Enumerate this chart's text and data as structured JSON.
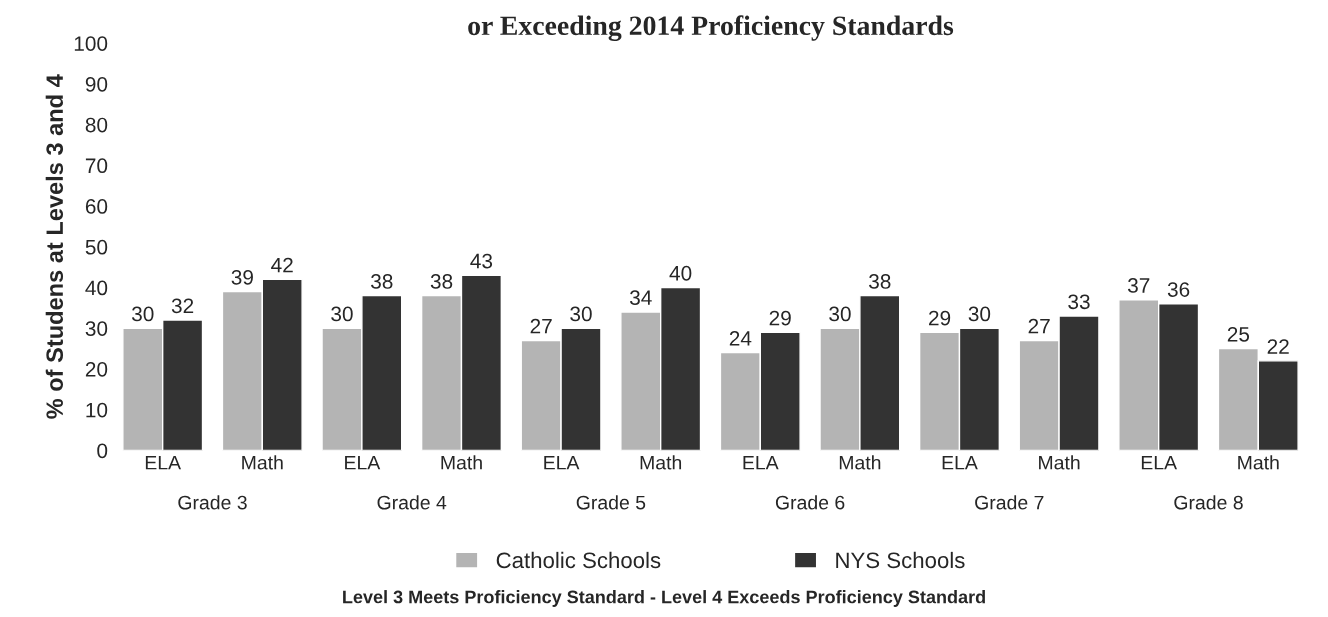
{
  "chart_data": {
    "type": "bar",
    "title": "or Exceeding 2014 Proficiency Standards",
    "ylabel": "% of Studens at Levels 3 and 4",
    "categories": [
      "ELA",
      "Math",
      "ELA",
      "Math",
      "ELA",
      "Math",
      "ELA",
      "Math",
      "ELA",
      "Math",
      "ELA",
      "Math"
    ],
    "series": [
      {
        "name": "Catholic Schools",
        "color": "#b4b4b4",
        "values": [
          30,
          39,
          30,
          38,
          27,
          34,
          24,
          30,
          29,
          27,
          37,
          25
        ]
      },
      {
        "name": "NYS Schools",
        "color": "#333333",
        "values": [
          32,
          42,
          38,
          43,
          30,
          40,
          29,
          38,
          30,
          33,
          36,
          22
        ]
      }
    ],
    "ylim": [
      0,
      100
    ],
    "yticks": [
      0,
      10,
      20,
      30,
      40,
      50,
      60,
      70,
      80,
      90,
      100
    ],
    "data_labels": true,
    "grid": false,
    "legend": "bottom",
    "annotations": [
      "Grade 3",
      "Grade 4",
      "Grade 5",
      "Grade 6",
      "Grade 7",
      "Grade 8",
      "Level 3 Meets Proficiency Standard - Level 4 Exceeds Proficiency Standard"
    ]
  }
}
